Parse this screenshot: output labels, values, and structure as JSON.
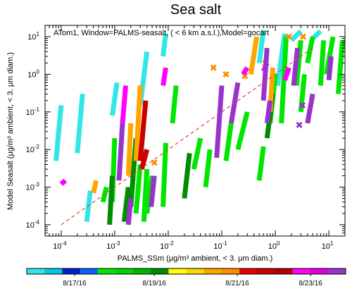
{
  "chart_data": {
    "type": "scatter",
    "title": "Sea salt",
    "annotation": "ATom1, Window=PALMS-seasalt, ( < 6 km a.s.l.),Model=gocart",
    "xlabel": "PALMS_SSm (μg/m³ ambient, < 3. μm diam.)",
    "ylabel": "Model Seasalt (μg/m³ ambient, < 3. μm diam.)",
    "x_scale": "log",
    "y_scale": "log",
    "xlim": [
      5e-05,
      20
    ],
    "ylim": [
      5e-05,
      20
    ],
    "x_ticks": [
      {
        "value": 0.0001,
        "base": "10",
        "exp": "-4"
      },
      {
        "value": 0.001,
        "base": "10",
        "exp": "-3"
      },
      {
        "value": 0.01,
        "base": "10",
        "exp": "-2"
      },
      {
        "value": 0.1,
        "base": "10",
        "exp": "-1"
      },
      {
        "value": 1,
        "base": "10",
        "exp": "0"
      },
      {
        "value": 10,
        "base": "10",
        "exp": "1"
      }
    ],
    "y_ticks": [
      {
        "value": 0.0001,
        "base": "10",
        "exp": "-4"
      },
      {
        "value": 0.001,
        "base": "10",
        "exp": "-3"
      },
      {
        "value": 0.01,
        "base": "10",
        "exp": "-2"
      },
      {
        "value": 0.1,
        "base": "10",
        "exp": "-1"
      },
      {
        "value": 1,
        "base": "10",
        "exp": "0"
      },
      {
        "value": 10,
        "base": "10",
        "exp": "1"
      }
    ],
    "reference_line": {
      "style": "dashed",
      "color": "#e04030",
      "x": [
        0.0001,
        5
      ],
      "y": [
        0.0001,
        5
      ]
    },
    "colorbar": {
      "colors": [
        "#33e6e6",
        "#00c8e6",
        "#0022c8",
        "#0a60ff",
        "#00e600",
        "#00d200",
        "#00b400",
        "#008c00",
        "#ffff00",
        "#ffd700",
        "#ffa500",
        "#ff8c00",
        "#e60000",
        "#c80000",
        "#b40000",
        "#ff00ff",
        "#dd00dd",
        "#9933cc"
      ],
      "tick_labels": [
        {
          "label": "8/17/16",
          "frac": 0.15
        },
        {
          "label": "8/19/16",
          "frac": 0.4
        },
        {
          "label": "8/21/16",
          "frac": 0.66
        },
        {
          "label": "8/23/16",
          "frac": 0.89
        }
      ]
    },
    "series": [
      {
        "color": "#33e6e6",
        "segments": [
          [
            8e-05,
            0.005,
            0.0001,
            0.15
          ],
          [
            0.0002,
            0.008,
            0.00025,
            0.3
          ],
          [
            0.0003,
            0.00012,
            0.00035,
            0.0008
          ],
          [
            0.0009,
            0.08,
            0.0011,
            0.6
          ],
          [
            0.003,
            0.15,
            0.004,
            4
          ],
          [
            0.008,
            3,
            0.009,
            12
          ],
          [
            0.5,
            2,
            0.6,
            15
          ],
          [
            2,
            8,
            3,
            14
          ],
          [
            5,
            9,
            7,
            14
          ],
          [
            1.1,
            0.5,
            1.5,
            12
          ]
        ]
      },
      {
        "color": "#00e600",
        "segments": [
          [
            0.0006,
            0.0004,
            0.0007,
            0.001
          ],
          [
            0.0009,
            0.0004,
            0.001,
            0.02
          ],
          [
            0.0025,
            0.0002,
            0.003,
            0.004
          ],
          [
            0.0035,
            0.00012,
            0.004,
            0.003
          ],
          [
            0.004,
            0.0002,
            0.005,
            0.002
          ],
          [
            0.008,
            0.0003,
            0.009,
            0.015
          ],
          [
            0.012,
            0.05,
            0.014,
            0.5
          ],
          [
            0.03,
            0.003,
            0.04,
            0.02
          ],
          [
            0.05,
            0.001,
            0.06,
            0.01
          ],
          [
            0.12,
            0.005,
            0.15,
            0.05
          ],
          [
            0.2,
            0.01,
            0.3,
            0.1
          ],
          [
            0.5,
            0.0015,
            0.6,
            0.012
          ],
          [
            0.8,
            0.05,
            1,
            1
          ],
          [
            1.3,
            0.05,
            1.6,
            10
          ],
          [
            2.5,
            0.5,
            3,
            8
          ],
          [
            4,
            2,
            5,
            10
          ],
          [
            7,
            0.5,
            8,
            8
          ],
          [
            9,
            1,
            12,
            10
          ],
          [
            15,
            0.3,
            18,
            8
          ],
          [
            3,
            0.1,
            3.5,
            1
          ]
        ]
      },
      {
        "color": "#008c00",
        "segments": [
          [
            0.0008,
            0.0001,
            0.0009,
            0.002
          ],
          [
            0.0015,
            0.00012,
            0.0018,
            0.001
          ],
          [
            0.002,
            0.0003,
            0.0025,
            0.02
          ],
          [
            0.02,
            0.0005,
            0.025,
            0.008
          ],
          [
            0.7,
            0.02,
            0.9,
            0.3
          ]
        ]
      },
      {
        "color": "#ffa500",
        "segments": [
          [
            0.0004,
            0.0007,
            0.00045,
            0.0015
          ],
          [
            0.0018,
            0.002,
            0.002,
            0.05
          ],
          [
            0.0025,
            0.005,
            0.003,
            0.5
          ],
          [
            0.35,
            1,
            0.45,
            10
          ],
          [
            0.8,
            0.1,
            0.9,
            1.5
          ]
        ]
      },
      {
        "color": "#ff8c00",
        "points": [
          [
            0.0055,
            0.0045
          ],
          [
            0.07,
            1.5
          ],
          [
            0.12,
            1
          ],
          [
            0.27,
            0.9
          ],
          [
            0.65,
            2
          ],
          [
            1.8,
            10
          ],
          [
            3.3,
            10
          ]
        ]
      },
      {
        "color": "#c80000",
        "segments": [
          [
            0.003,
            0.005,
            0.0038,
            0.2
          ],
          [
            0.0032,
            0.003,
            0.004,
            0.01
          ]
        ]
      },
      {
        "color": "#ff00ff",
        "segments": [
          [
            0.0014,
            0.05,
            0.0016,
            0.5
          ],
          [
            0.008,
            0.5,
            0.009,
            1.5
          ],
          [
            0.0001,
            0.0012,
            0.00012,
            0.0015
          ],
          [
            1.5,
            0.7,
            1.8,
            1.5
          ],
          [
            0.6,
            1.2,
            0.7,
            2
          ],
          [
            0.25,
            1,
            0.3,
            1.5
          ]
        ]
      },
      {
        "color": "#9933cc",
        "segments": [
          [
            0.0012,
            0.0015,
            0.0014,
            0.05
          ],
          [
            0.0048,
            0.0003,
            0.0055,
            0.002
          ],
          [
            0.0018,
            0.0001,
            0.002,
            0.0005
          ],
          [
            0.08,
            0.006,
            0.1,
            0.5
          ],
          [
            0.15,
            0.05,
            0.2,
            0.6
          ],
          [
            0.6,
            0.2,
            0.7,
            5
          ],
          [
            0.7,
            0.05,
            0.8,
            0.2
          ],
          [
            2.2,
            0.5,
            2.6,
            5
          ],
          [
            4,
            0.05,
            5,
            0.3
          ],
          [
            10,
            0.7,
            11,
            3
          ]
        ]
      },
      {
        "color": "#9933cc",
        "points": [
          [
            3.2,
            0.15
          ],
          [
            2.8,
            0.045
          ]
        ]
      }
    ]
  }
}
